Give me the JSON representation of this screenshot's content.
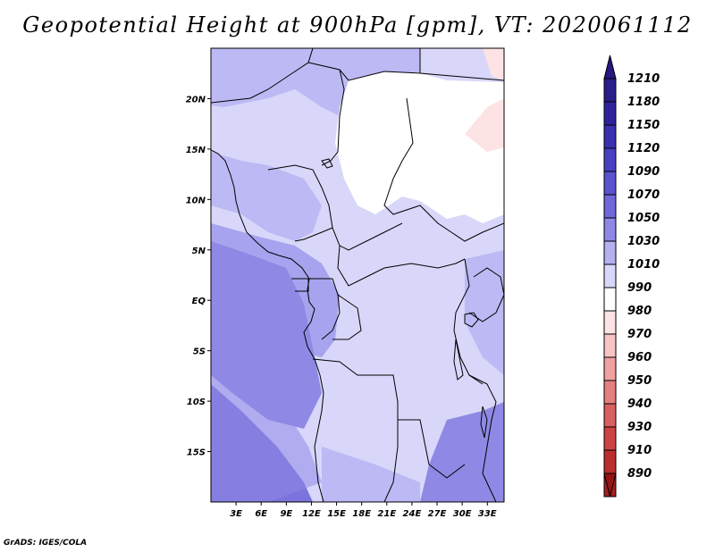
{
  "title": "Geopotential Height at 900hPa [gpm], VT: 2020061112",
  "credit": "GrADS: IGES/COLA",
  "map": {
    "lat_ticks": [
      {
        "lat": 20,
        "label": "20N"
      },
      {
        "lat": 15,
        "label": "15N"
      },
      {
        "lat": 10,
        "label": "10N"
      },
      {
        "lat": 5,
        "label": "5N"
      },
      {
        "lat": 0,
        "label": "EQ"
      },
      {
        "lat": -5,
        "label": "5S"
      },
      {
        "lat": -10,
        "label": "10S"
      },
      {
        "lat": -15,
        "label": "15S"
      }
    ],
    "lon_ticks": [
      {
        "lon": 3,
        "label": "3E"
      },
      {
        "lon": 6,
        "label": "6E"
      },
      {
        "lon": 9,
        "label": "9E"
      },
      {
        "lon": 12,
        "label": "12E"
      },
      {
        "lon": 15,
        "label": "15E"
      },
      {
        "lon": 18,
        "label": "18E"
      },
      {
        "lon": 21,
        "label": "21E"
      },
      {
        "lon": 24,
        "label": "24E"
      },
      {
        "lon": 27,
        "label": "27E"
      },
      {
        "lon": 30,
        "label": "30E"
      },
      {
        "lon": 33,
        "label": "33E"
      }
    ],
    "extent": {
      "lon_min": 0,
      "lon_max": 35,
      "lat_min": -20,
      "lat_max": 25
    }
  },
  "colorbar": {
    "levels": [
      {
        "label": "1210",
        "color": "#2a1d8a"
      },
      {
        "label": "1180",
        "color": "#2f239c"
      },
      {
        "label": "1150",
        "color": "#3a30b0"
      },
      {
        "label": "1120",
        "color": "#4840c2"
      },
      {
        "label": "1090",
        "color": "#5a52cf"
      },
      {
        "label": "1070",
        "color": "#7068da"
      },
      {
        "label": "1050",
        "color": "#8e88e6"
      },
      {
        "label": "1030",
        "color": "#b4b1f1"
      },
      {
        "label": "1010",
        "color": "#d8d7fa"
      },
      {
        "label": "990",
        "color": "#ffffff"
      },
      {
        "label": "980",
        "color": "#fde3e3"
      },
      {
        "label": "970",
        "color": "#f8c3c3"
      },
      {
        "label": "960",
        "color": "#f0a2a2"
      },
      {
        "label": "950",
        "color": "#e58080"
      },
      {
        "label": "940",
        "color": "#d96060"
      },
      {
        "label": "930",
        "color": "#cc4343"
      },
      {
        "label": "910",
        "color": "#bb2e2e"
      },
      {
        "label": "890",
        "color": "#a51f1f"
      }
    ],
    "top_color": "#251780",
    "bottom_color": "#951414"
  },
  "field_colors": {
    "very_high": "#7b74dc",
    "high": "#8f89e5",
    "mid_high": "#a7a3ee",
    "mid": "#bcb9f4",
    "low": "#d8d7fa",
    "white": "#ffffff",
    "pink": "#fde3e3"
  }
}
